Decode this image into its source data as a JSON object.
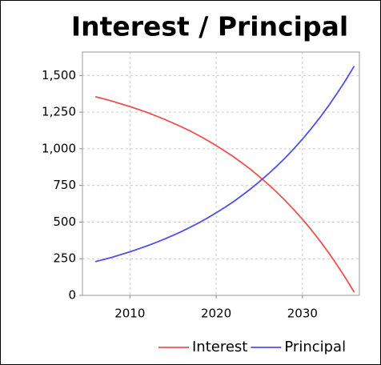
{
  "chart_data": {
    "type": "line",
    "title": "Interest / Principal",
    "x": [
      2006,
      2007,
      2008,
      2009,
      2010,
      2011,
      2012,
      2013,
      2014,
      2015,
      2016,
      2017,
      2018,
      2019,
      2020,
      2021,
      2022,
      2023,
      2024,
      2025,
      2026,
      2027,
      2028,
      2029,
      2030,
      2031,
      2032,
      2033,
      2034,
      2035,
      2036
    ],
    "series": [
      {
        "name": "Interest",
        "color": "#f05050",
        "values": [
          1355,
          1340,
          1324,
          1306,
          1288,
          1268,
          1248,
          1225,
          1201,
          1176,
          1149,
          1121,
          1090,
          1057,
          1022,
          985,
          946,
          903,
          859,
          810,
          759,
          705,
          647,
          585,
          519,
          449,
          374,
          294,
          208,
          118,
          21
        ]
      },
      {
        "name": "Principal",
        "color": "#5050e8",
        "values": [
          230,
          245,
          261,
          279,
          297,
          317,
          338,
          360,
          384,
          409,
          436,
          465,
          495,
          528,
          563,
          600,
          639,
          682,
          727,
          775,
          826,
          880,
          938,
          1000,
          1066,
          1136,
          1211,
          1291,
          1377,
          1467,
          1564
        ]
      }
    ],
    "xlim": [
      2004.5,
      2036.6
    ],
    "ylim": [
      0,
      1660
    ],
    "xticks": [
      2010,
      2020,
      2030
    ],
    "yticks": [
      0,
      250,
      500,
      750,
      {
        "value": 1000,
        "label": "1,000"
      },
      {
        "value": 1250,
        "label": "1,250"
      },
      {
        "value": 1500,
        "label": "1,500"
      }
    ],
    "grid": true,
    "legend": "bottom"
  }
}
